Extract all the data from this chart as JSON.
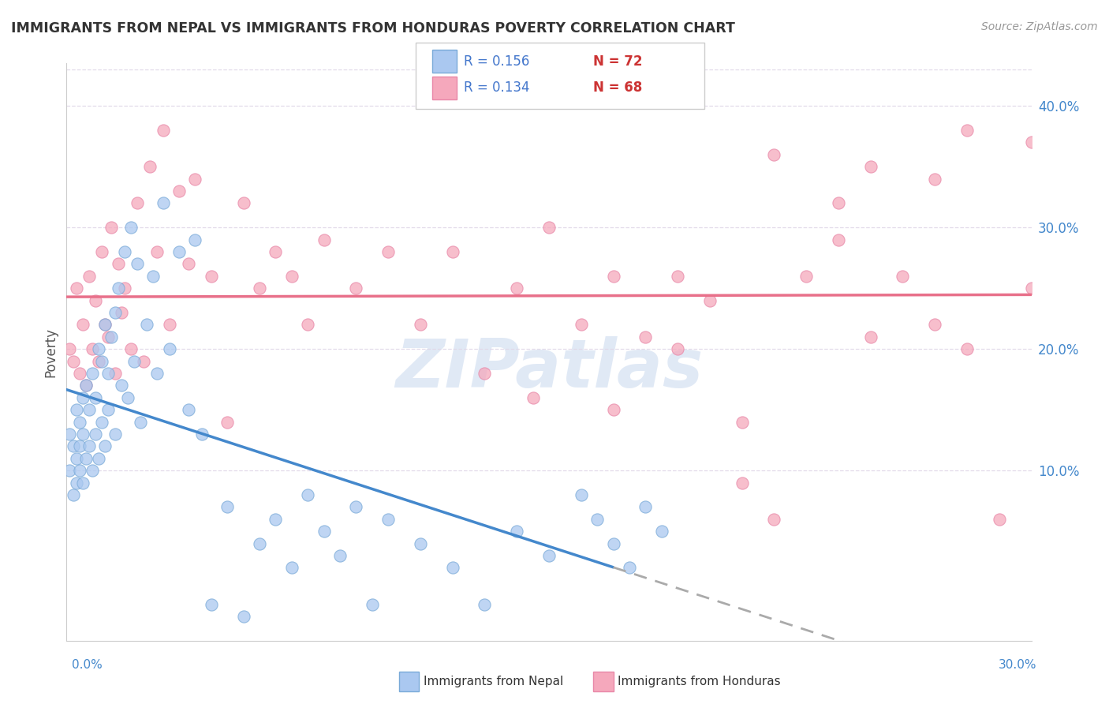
{
  "title": "IMMIGRANTS FROM NEPAL VS IMMIGRANTS FROM HONDURAS POVERTY CORRELATION CHART",
  "source": "Source: ZipAtlas.com",
  "ylabel": "Poverty",
  "x_min": 0.0,
  "x_max": 0.3,
  "y_min": -0.04,
  "y_max": 0.435,
  "nepal_color": "#aac8f0",
  "nepal_edge_color": "#7aaad8",
  "honduras_color": "#f5a8bc",
  "honduras_edge_color": "#e888a8",
  "nepal_trend_color": "#4488cc",
  "honduras_trend_color": "#e8708a",
  "legend_R_nepal": "R = 0.156",
  "legend_N_nepal": "N = 72",
  "legend_R_honduras": "R = 0.134",
  "legend_N_honduras": "N = 68",
  "legend_color": "#4477cc",
  "legend_N_color": "#cc3333",
  "watermark": "ZIPatlas",
  "nepal_N": 72,
  "honduras_N": 68,
  "nepal_x": [
    0.001,
    0.001,
    0.002,
    0.002,
    0.003,
    0.003,
    0.003,
    0.004,
    0.004,
    0.004,
    0.005,
    0.005,
    0.005,
    0.006,
    0.006,
    0.007,
    0.007,
    0.008,
    0.008,
    0.009,
    0.009,
    0.01,
    0.01,
    0.011,
    0.011,
    0.012,
    0.012,
    0.013,
    0.013,
    0.014,
    0.015,
    0.015,
    0.016,
    0.017,
    0.018,
    0.019,
    0.02,
    0.021,
    0.022,
    0.023,
    0.025,
    0.027,
    0.028,
    0.03,
    0.032,
    0.035,
    0.038,
    0.04,
    0.042,
    0.045,
    0.05,
    0.055,
    0.06,
    0.065,
    0.07,
    0.075,
    0.08,
    0.085,
    0.09,
    0.095,
    0.1,
    0.11,
    0.12,
    0.13,
    0.14,
    0.15,
    0.16,
    0.165,
    0.17,
    0.175,
    0.18,
    0.185
  ],
  "nepal_y": [
    0.13,
    0.1,
    0.12,
    0.08,
    0.15,
    0.11,
    0.09,
    0.14,
    0.12,
    0.1,
    0.16,
    0.13,
    0.09,
    0.17,
    0.11,
    0.15,
    0.12,
    0.18,
    0.1,
    0.16,
    0.13,
    0.2,
    0.11,
    0.19,
    0.14,
    0.22,
    0.12,
    0.18,
    0.15,
    0.21,
    0.23,
    0.13,
    0.25,
    0.17,
    0.28,
    0.16,
    0.3,
    0.19,
    0.27,
    0.14,
    0.22,
    0.26,
    0.18,
    0.32,
    0.2,
    0.28,
    0.15,
    0.29,
    0.13,
    -0.01,
    0.07,
    -0.02,
    0.04,
    0.06,
    0.02,
    0.08,
    0.05,
    0.03,
    0.07,
    -0.01,
    0.06,
    0.04,
    0.02,
    -0.01,
    0.05,
    0.03,
    0.08,
    0.06,
    0.04,
    0.02,
    0.07,
    0.05
  ],
  "honduras_x": [
    0.001,
    0.002,
    0.003,
    0.004,
    0.005,
    0.006,
    0.007,
    0.008,
    0.009,
    0.01,
    0.011,
    0.012,
    0.013,
    0.014,
    0.015,
    0.016,
    0.017,
    0.018,
    0.02,
    0.022,
    0.024,
    0.026,
    0.028,
    0.03,
    0.032,
    0.035,
    0.038,
    0.04,
    0.045,
    0.05,
    0.055,
    0.06,
    0.065,
    0.07,
    0.075,
    0.08,
    0.09,
    0.1,
    0.11,
    0.12,
    0.13,
    0.14,
    0.15,
    0.16,
    0.17,
    0.18,
    0.19,
    0.2,
    0.21,
    0.22,
    0.23,
    0.24,
    0.25,
    0.26,
    0.27,
    0.28,
    0.29,
    0.3,
    0.22,
    0.25,
    0.28,
    0.3,
    0.27,
    0.24,
    0.21,
    0.19,
    0.17,
    0.145
  ],
  "honduras_y": [
    0.2,
    0.19,
    0.25,
    0.18,
    0.22,
    0.17,
    0.26,
    0.2,
    0.24,
    0.19,
    0.28,
    0.22,
    0.21,
    0.3,
    0.18,
    0.27,
    0.23,
    0.25,
    0.2,
    0.32,
    0.19,
    0.35,
    0.28,
    0.38,
    0.22,
    0.33,
    0.27,
    0.34,
    0.26,
    0.14,
    0.32,
    0.25,
    0.28,
    0.26,
    0.22,
    0.29,
    0.25,
    0.28,
    0.22,
    0.28,
    0.18,
    0.25,
    0.3,
    0.22,
    0.26,
    0.21,
    0.26,
    0.24,
    0.09,
    0.06,
    0.26,
    0.29,
    0.21,
    0.26,
    0.22,
    0.2,
    0.06,
    0.25,
    0.36,
    0.35,
    0.38,
    0.37,
    0.34,
    0.32,
    0.14,
    0.2,
    0.15,
    0.16
  ]
}
